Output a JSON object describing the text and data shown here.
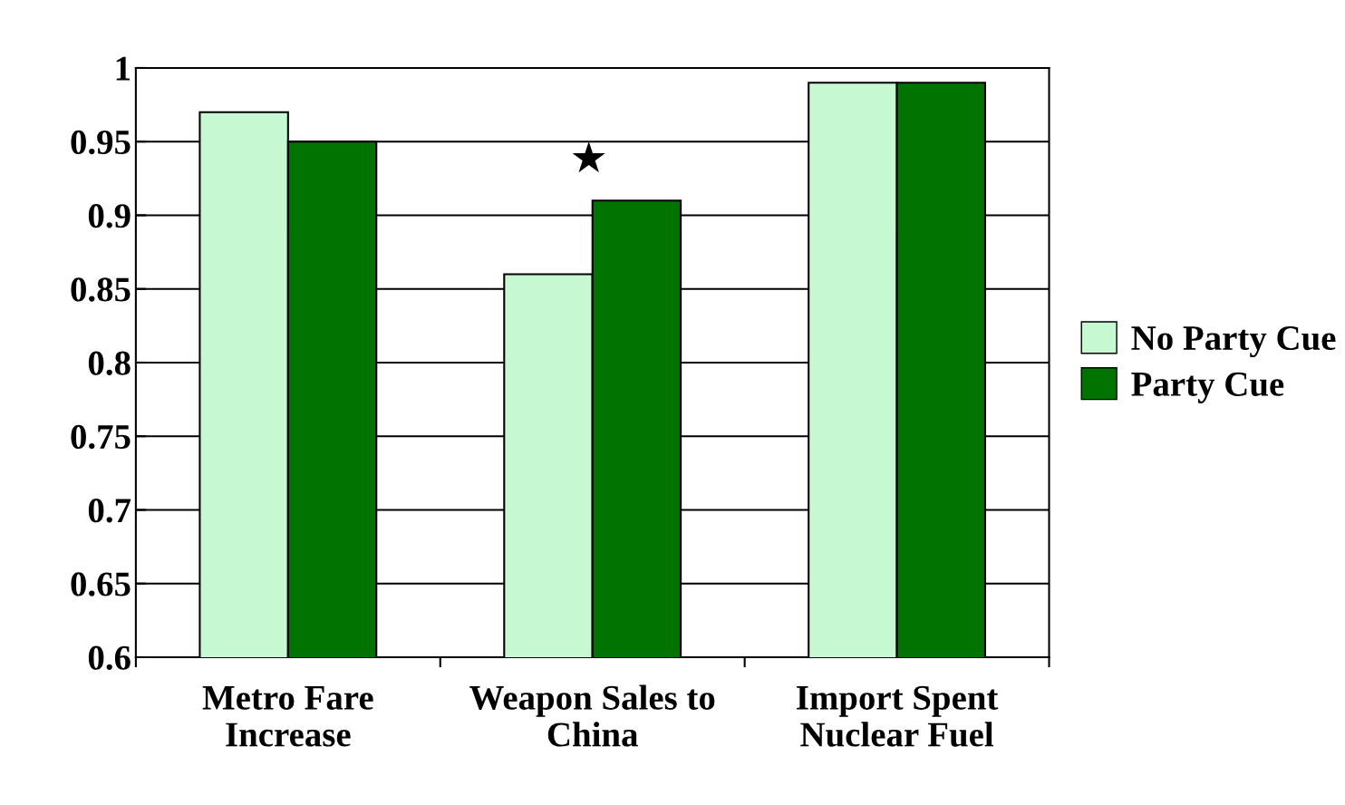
{
  "chart_data": {
    "type": "bar",
    "categories": [
      "Metro Fare\nIncrease",
      "Weapon Sales to\nChina",
      "Import Spent\nNuclear Fuel"
    ],
    "series": [
      {
        "name": "No Party Cue",
        "color": "#c6f9d2",
        "values": [
          0.97,
          0.86,
          0.99
        ]
      },
      {
        "name": "Party Cue",
        "color": "#007300",
        "values": [
          0.95,
          0.91,
          0.99
        ]
      }
    ],
    "ylim": [
      0.6,
      1
    ],
    "yticks": [
      0.6,
      0.65,
      0.7,
      0.75,
      0.8,
      0.85,
      0.9,
      0.95,
      1
    ],
    "grid": "y",
    "legend": "right",
    "annotations": [
      "★"
    ]
  }
}
